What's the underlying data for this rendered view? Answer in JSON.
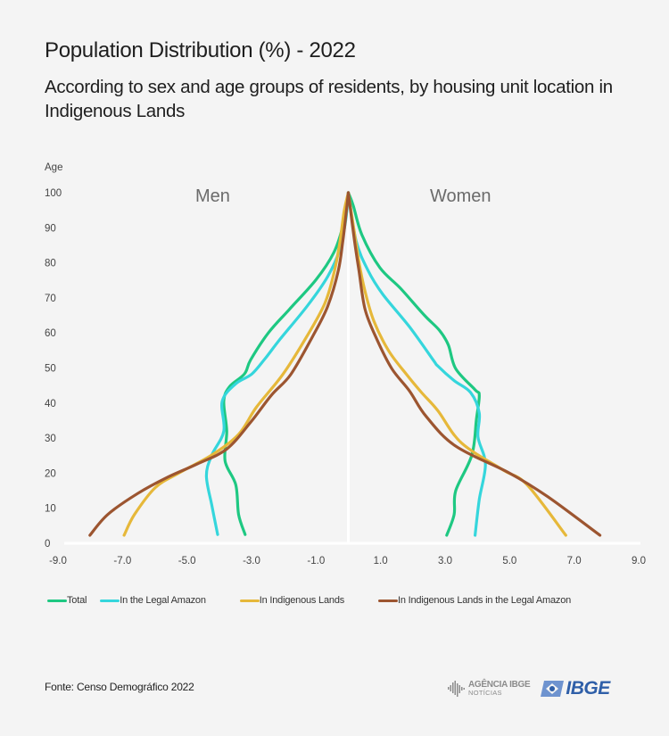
{
  "header": {
    "title": "Population Distribution (%) - 2022",
    "subtitle": "According to sex and age groups of residents, by housing unit location in Indigenous Lands"
  },
  "chart_data": {
    "type": "line",
    "title": "Population Distribution (%) - 2022",
    "subtitle": "According to sex and age groups of residents, by housing unit location in Indigenous Lands",
    "xlabel": "",
    "ylabel": "Age",
    "xlim": [
      -9,
      9
    ],
    "ylim": [
      0,
      100
    ],
    "x_ticks": [
      -9,
      -7,
      -5,
      -3,
      -1,
      1,
      3,
      5,
      7,
      9
    ],
    "x_tick_labels": [
      "-9.0",
      "-7.0",
      "-5.0",
      "-3.0",
      "-1.0",
      "1.0",
      "3.0",
      "5.0",
      "7.0",
      "9.0"
    ],
    "y_ticks": [
      0,
      10,
      20,
      30,
      40,
      50,
      60,
      70,
      80,
      90,
      100
    ],
    "y_tick_labels": [
      "0",
      "10",
      "20",
      "30",
      "40",
      "50",
      "60",
      "70",
      "80",
      "90",
      "100"
    ],
    "side_labels": {
      "left": "Men",
      "right": "Women"
    },
    "grid": false,
    "legend_position": "bottom",
    "note": "Men plotted as negative percentages (left), women as positive (right)",
    "series": [
      {
        "name": "Total",
        "color": "#1ec882",
        "men": [
          [
            -3.2,
            2.5
          ],
          [
            -3.4,
            8.2
          ],
          [
            -3.49,
            16.7
          ],
          [
            -3.82,
            23.5
          ],
          [
            -3.77,
            32
          ],
          [
            -3.86,
            40.5
          ],
          [
            -3.68,
            44.7
          ],
          [
            -3.22,
            48.3
          ],
          [
            -3.03,
            52.3
          ],
          [
            -2.48,
            60
          ],
          [
            -1.83,
            66.7
          ],
          [
            -1.0,
            75.2
          ],
          [
            -0.45,
            82.9
          ],
          [
            -0.17,
            90.5
          ],
          [
            -0.04,
            97.3
          ],
          [
            0,
            100
          ]
        ],
        "women": [
          [
            3.05,
            2.3
          ],
          [
            3.28,
            8.2
          ],
          [
            3.33,
            15
          ],
          [
            3.83,
            25.2
          ],
          [
            3.97,
            35.4
          ],
          [
            4.06,
            42.2
          ],
          [
            3.93,
            43.8
          ],
          [
            3.33,
            49.8
          ],
          [
            3.1,
            56.6
          ],
          [
            2.82,
            60.8
          ],
          [
            2.36,
            65
          ],
          [
            1.62,
            72.7
          ],
          [
            0.98,
            78.6
          ],
          [
            0.42,
            88
          ],
          [
            0.15,
            96.4
          ],
          [
            0,
            100
          ]
        ]
      },
      {
        "name": "In the Legal Amazon",
        "color": "#35d6dc",
        "men": [
          [
            -4.05,
            2.5
          ],
          [
            -4.23,
            10.8
          ],
          [
            -4.4,
            19.3
          ],
          [
            -4.23,
            25.2
          ],
          [
            -3.86,
            32
          ],
          [
            -3.91,
            40.5
          ],
          [
            -3.49,
            45.5
          ],
          [
            -2.99,
            48.3
          ],
          [
            -2.57,
            52.8
          ],
          [
            -2.11,
            58.3
          ],
          [
            -1.28,
            67.6
          ],
          [
            -0.64,
            76.1
          ],
          [
            -0.27,
            83.7
          ],
          [
            -0.08,
            92.2
          ],
          [
            0,
            100
          ]
        ],
        "women": [
          [
            3.93,
            2.3
          ],
          [
            4.06,
            12.5
          ],
          [
            4.25,
            22.6
          ],
          [
            4.02,
            30.3
          ],
          [
            4.06,
            37.1
          ],
          [
            3.79,
            43
          ],
          [
            3.28,
            46.4
          ],
          [
            2.77,
            50.6
          ],
          [
            2.63,
            52.3
          ],
          [
            1.9,
            61.7
          ],
          [
            1.07,
            71
          ],
          [
            0.61,
            77.8
          ],
          [
            0.24,
            86.3
          ],
          [
            0,
            100
          ]
        ]
      },
      {
        "name": "In Indigenous Lands",
        "color": "#e6b83a",
        "men": [
          [
            -6.95,
            2.3
          ],
          [
            -6.63,
            8.2
          ],
          [
            -5.98,
            15.9
          ],
          [
            -5.24,
            20.1
          ],
          [
            -4.23,
            25.2
          ],
          [
            -3.4,
            31.1
          ],
          [
            -2.85,
            38.8
          ],
          [
            -2.02,
            48.3
          ],
          [
            -1.28,
            59.1
          ],
          [
            -0.73,
            68.4
          ],
          [
            -0.45,
            76.9
          ],
          [
            -0.27,
            85.4
          ],
          [
            -0.13,
            94.7
          ],
          [
            0,
            100
          ]
        ],
        "women": [
          [
            6.74,
            2.3
          ],
          [
            5.54,
            16.7
          ],
          [
            4.8,
            20.9
          ],
          [
            3.51,
            28.6
          ],
          [
            2.77,
            37.9
          ],
          [
            2.27,
            43
          ],
          [
            1.81,
            48.1
          ],
          [
            1.25,
            54.9
          ],
          [
            0.79,
            63.4
          ],
          [
            0.52,
            71.8
          ],
          [
            0.33,
            80.3
          ],
          [
            0,
            100
          ]
        ]
      },
      {
        "name": "In Indigenous Lands in the Legal Amazon",
        "color": "#9c5530",
        "men": [
          [
            -8.01,
            2.3
          ],
          [
            -7.46,
            8.2
          ],
          [
            -6.53,
            14.2
          ],
          [
            -5.61,
            18.8
          ],
          [
            -4.69,
            22.6
          ],
          [
            -3.77,
            26.9
          ],
          [
            -3.03,
            34.5
          ],
          [
            -2.39,
            42.2
          ],
          [
            -1.79,
            48.1
          ],
          [
            -1.1,
            59.1
          ],
          [
            -0.64,
            67.6
          ],
          [
            -0.31,
            77.8
          ],
          [
            -0.17,
            86.3
          ],
          [
            -0.06,
            94.7
          ],
          [
            0,
            100
          ]
        ],
        "women": [
          [
            7.8,
            2.3
          ],
          [
            6.18,
            13.3
          ],
          [
            4.98,
            20.1
          ],
          [
            3.33,
            27.7
          ],
          [
            2.41,
            36.2
          ],
          [
            1.9,
            43.4
          ],
          [
            1.35,
            49.8
          ],
          [
            0.88,
            58.3
          ],
          [
            0.52,
            66.7
          ],
          [
            0.33,
            77.8
          ],
          [
            0.19,
            86.3
          ],
          [
            0,
            100
          ]
        ]
      }
    ]
  },
  "legend": [
    {
      "label": "Total",
      "color": "#1ec882"
    },
    {
      "label": "In the Legal Amazon",
      "color": "#35d6dc"
    },
    {
      "label": "In Indigenous Lands",
      "color": "#e6b83a"
    },
    {
      "label": "In Indigenous Lands in the Legal Amazon",
      "color": "#9c5530"
    }
  ],
  "footer": {
    "source": "Fonte: Censo Demográfico 2022",
    "agencia_logo_top": "AGÊNCIA IBGE",
    "agencia_logo_bottom": "NOTÍCIAS",
    "ibge_logo": "IBGE"
  }
}
